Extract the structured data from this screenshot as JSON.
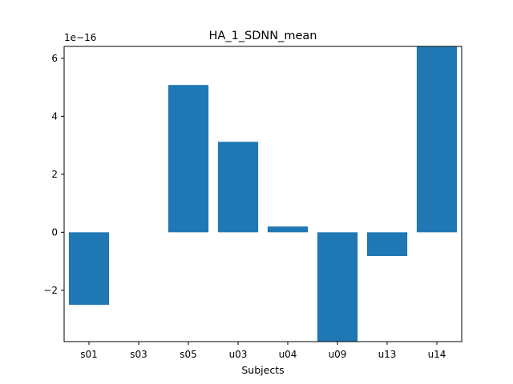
{
  "chart_data": {
    "type": "bar",
    "title": "HA_1_SDNN_mean",
    "xlabel": "Subjects",
    "ylabel": "",
    "y_offset_label": "1e−16",
    "y_scale": 1e-16,
    "categories": [
      "s01",
      "s03",
      "s05",
      "u03",
      "u04",
      "u09",
      "u13",
      "u14"
    ],
    "values": [
      -2.5,
      0.0,
      5.08,
      3.12,
      0.2,
      -3.77,
      -0.82,
      6.41
    ],
    "ylim": [
      -3.77,
      6.41
    ],
    "yticks": [
      -2,
      0,
      2,
      4,
      6
    ],
    "ytick_labels": [
      "−2",
      "0",
      "2",
      "4",
      "6"
    ],
    "grid": false,
    "bar_color": "#1f77b4"
  }
}
